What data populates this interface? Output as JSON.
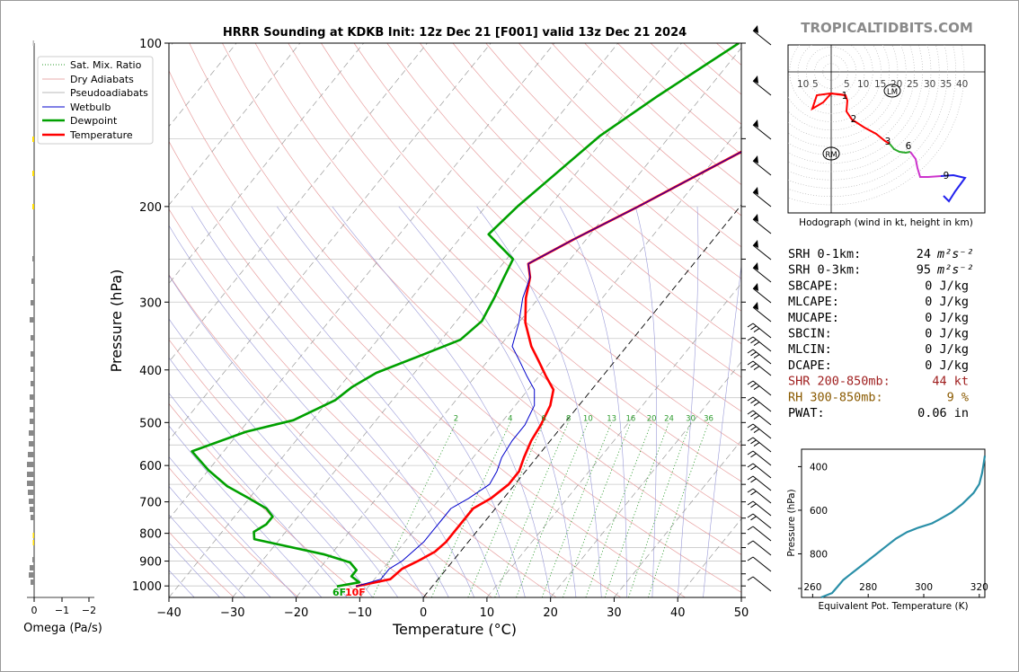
{
  "branding": "TROPICALTIDBITS.COM",
  "chart_data": [
    {
      "type": "line",
      "name": "skew-t",
      "title": "HRRR Sounding at KDKB Init: 12z Dec 21 [F001] valid 13z Dec 21 2024",
      "xlabel": "Temperature (°C)",
      "ylabel": "Pressure (hPa)",
      "xlim": [
        -40,
        50
      ],
      "ylim": [
        1050,
        100
      ],
      "y_scale": "log",
      "x_ticks": [
        "−40",
        "−30",
        "−20",
        "−10",
        "0",
        "10",
        "20",
        "30",
        "40",
        "50"
      ],
      "y_ticks": [
        "100",
        "200",
        "300",
        "400",
        "500",
        "600",
        "700",
        "800",
        "900",
        "1000"
      ],
      "legend": [
        "Sat. Mix. Ratio",
        "Dry Adiabats",
        "Pseudoadiabats",
        "Wetbulb",
        "Dewpoint",
        "Temperature"
      ],
      "legend_position": "top-left",
      "mixing_ratio_labels": [
        "2",
        "4",
        "6",
        "8",
        "10",
        "13",
        "16",
        "20",
        "24",
        "30",
        "36"
      ],
      "surface_labels": {
        "dewpoint": "6F",
        "temperature": "10F"
      },
      "series": [
        {
          "name": "Temperature",
          "color": "#ff0000",
          "points": [
            [
              -12,
              1002
            ],
            [
              -7.5,
              972
            ],
            [
              -7,
              930
            ],
            [
              -5.5,
              900
            ],
            [
              -4,
              865
            ],
            [
              -3.5,
              830
            ],
            [
              -3.5,
              790
            ],
            [
              -3.5,
              755
            ],
            [
              -3.5,
              720
            ],
            [
              -2,
              690
            ],
            [
              -1,
              650
            ],
            [
              -1,
              615
            ],
            [
              -2,
              580
            ],
            [
              -3,
              540
            ],
            [
              -3.5,
              505
            ],
            [
              -4.5,
              465
            ],
            [
              -6,
              435
            ],
            [
              -9,
              410
            ],
            [
              -12,
              385
            ],
            [
              -15,
              362
            ],
            [
              -19,
              327
            ],
            [
              -22,
              295
            ],
            [
              -24,
              270
            ],
            [
              -26,
              255
            ],
            [
              -22,
              230
            ],
            [
              -16,
              200
            ],
            [
              -10,
              172
            ],
            [
              -4,
              148
            ],
            [
              1,
              128
            ],
            [
              6,
              112
            ],
            [
              9,
              100
            ]
          ]
        },
        {
          "name": "Dewpoint",
          "color": "#00a000",
          "points": [
            [
              -15,
              1002
            ],
            [
              -12,
              985
            ],
            [
              -14,
              960
            ],
            [
              -14,
              935
            ],
            [
              -16,
              905
            ],
            [
              -21,
              875
            ],
            [
              -28,
              845
            ],
            [
              -34,
              820
            ],
            [
              -35,
              795
            ],
            [
              -34,
              770
            ],
            [
              -34,
              745
            ],
            [
              -36,
              720
            ],
            [
              -40,
              690
            ],
            [
              -45,
              655
            ],
            [
              -50,
              612
            ],
            [
              -55,
              565
            ],
            [
              -49,
              520
            ],
            [
              -43,
              495
            ],
            [
              -39,
              455
            ],
            [
              -38,
              430
            ],
            [
              -36,
              405
            ],
            [
              -31,
              375
            ],
            [
              -27,
              352
            ],
            [
              -26,
              325
            ],
            [
              -27,
              295
            ],
            [
              -28,
              272
            ],
            [
              -29,
              250
            ],
            [
              -36,
              225
            ],
            [
              -35,
              200
            ],
            [
              -33,
              172
            ],
            [
              -31,
              148
            ],
            [
              -27,
              125
            ],
            [
              -21,
              100
            ]
          ]
        },
        {
          "name": "Wetbulb",
          "color": "#0000cc",
          "points": [
            [
              -12,
              1002
            ],
            [
              -9,
              972
            ],
            [
              -9,
              930
            ],
            [
              -8,
              900
            ],
            [
              -7.5,
              865
            ],
            [
              -7,
              830
            ],
            [
              -7,
              790
            ],
            [
              -7,
              755
            ],
            [
              -7,
              720
            ],
            [
              -5.5,
              690
            ],
            [
              -4,
              650
            ],
            [
              -4.5,
              615
            ],
            [
              -5.5,
              580
            ],
            [
              -6,
              540
            ],
            [
              -6,
              505
            ],
            [
              -7,
              465
            ],
            [
              -9,
              435
            ],
            [
              -12,
              410
            ],
            [
              -15,
              385
            ],
            [
              -18,
              362
            ],
            [
              -20,
              327
            ],
            [
              -22.5,
              295
            ],
            [
              -24,
              270
            ],
            [
              -26,
              255
            ],
            [
              -22,
              230
            ],
            [
              -16,
              200
            ],
            [
              -10,
              172
            ],
            [
              -4,
              148
            ],
            [
              1,
              128
            ],
            [
              5,
              112
            ],
            [
              8,
              100
            ]
          ]
        }
      ]
    },
    {
      "type": "line",
      "name": "hodograph",
      "title": "Hodograph (wind in kt, height in km)",
      "ring_labels": [
        "10",
        "5",
        "5",
        "10",
        "15",
        "20",
        "25",
        "30",
        "35",
        "40"
      ],
      "markers": [
        "LM",
        "RM"
      ],
      "height_labels": [
        "1",
        "2",
        "3",
        "6",
        "9"
      ]
    },
    {
      "type": "line",
      "name": "theta-e",
      "xlabel": "Equivalent Pot. Temperature (K)",
      "ylabel": "Pressure (hPa)",
      "x_ticks": [
        "260",
        "280",
        "300",
        "320"
      ],
      "y_ticks": [
        "400",
        "600",
        "800"
      ],
      "xlim": [
        256,
        322
      ],
      "ylim": [
        1000,
        320
      ],
      "points": [
        [
          263,
          1000
        ],
        [
          267,
          980
        ],
        [
          269,
          950
        ],
        [
          271,
          920
        ],
        [
          273,
          900
        ],
        [
          277,
          860
        ],
        [
          280,
          830
        ],
        [
          283,
          800
        ],
        [
          286,
          770
        ],
        [
          290,
          730
        ],
        [
          294,
          700
        ],
        [
          298,
          680
        ],
        [
          303,
          660
        ],
        [
          306,
          640
        ],
        [
          310,
          610
        ],
        [
          314,
          570
        ],
        [
          318,
          520
        ],
        [
          320,
          480
        ],
        [
          321,
          430
        ],
        [
          321.5,
          390
        ],
        [
          322,
          350
        ]
      ]
    }
  ],
  "omega": {
    "xlabel": "Omega (Pa/s)",
    "ticks": [
      "0",
      "−1",
      "−2"
    ]
  },
  "indices": [
    {
      "label": "SRH 0-1km:",
      "value": "24",
      "unit": "m²s⁻²",
      "color": "#000000"
    },
    {
      "label": "SRH 0-3km:",
      "value": "95",
      "unit": "m²s⁻²",
      "color": "#000000"
    },
    {
      "label": "SBCAPE:",
      "value": "0 J/kg",
      "unit": "",
      "color": "#000000"
    },
    {
      "label": "MLCAPE:",
      "value": "0 J/kg",
      "unit": "",
      "color": "#000000"
    },
    {
      "label": "MUCAPE:",
      "value": "0 J/kg",
      "unit": "",
      "color": "#000000"
    },
    {
      "label": "SBCIN:",
      "value": "0 J/kg",
      "unit": "",
      "color": "#000000"
    },
    {
      "label": "MLCIN:",
      "value": "0 J/kg",
      "unit": "",
      "color": "#000000"
    },
    {
      "label": "DCAPE:",
      "value": "0 J/kg",
      "unit": "",
      "color": "#000000"
    },
    {
      "label": "SHR 200-850mb:",
      "value": "44 kt",
      "unit": "",
      "color": "#a02020"
    },
    {
      "label": "RH 300-850mb:",
      "value": "9 %",
      "unit": "",
      "color": "#8a5a00"
    },
    {
      "label": "PWAT:",
      "value": "0.06 in",
      "unit": "",
      "color": "#000000"
    }
  ]
}
